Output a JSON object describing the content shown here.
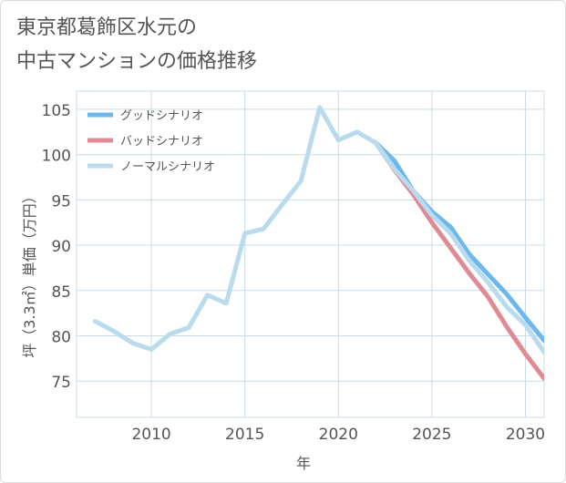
{
  "title": {
    "line1": "東京都葛飾区水元の",
    "line2": "中古マンションの価格推移"
  },
  "colors": {
    "good": "#6cb8ec",
    "bad": "#e08a93",
    "normal": "#b9dbed",
    "grid": "#c9dce8",
    "axis_text": "#555555"
  },
  "chart_data": {
    "type": "line",
    "title": "東京都葛飾区水元の中古マンションの価格推移",
    "xlabel": "年",
    "ylabel": "坪（3.3㎡）単価（万円）",
    "xlim": [
      2006,
      2031
    ],
    "ylim": [
      71,
      107
    ],
    "x_ticks": [
      2010,
      2015,
      2020,
      2025,
      2030
    ],
    "y_ticks": [
      75,
      80,
      85,
      90,
      95,
      100,
      105
    ],
    "grid": true,
    "legend_position": "top-left",
    "series": [
      {
        "name": "グッドシナリオ",
        "color": "#6cb8ec",
        "x": [
          2022,
          2023,
          2024,
          2025,
          2026,
          2027,
          2028,
          2029,
          2030,
          2031
        ],
        "y": [
          101.3,
          99.3,
          96.0,
          93.7,
          92.0,
          89.0,
          86.8,
          84.6,
          82.0,
          79.5
        ]
      },
      {
        "name": "バッドシナリオ",
        "color": "#e08a93",
        "x": [
          2022,
          2023,
          2024,
          2025,
          2026,
          2027,
          2028,
          2029,
          2030,
          2031
        ],
        "y": [
          101.3,
          98.3,
          95.6,
          92.5,
          89.7,
          86.9,
          84.3,
          81.0,
          78.0,
          75.3
        ]
      },
      {
        "name": "ノーマルシナリオ",
        "color": "#b9dbed",
        "x": [
          2007,
          2008,
          2009,
          2010,
          2011,
          2012,
          2013,
          2014,
          2015,
          2016,
          2017,
          2018,
          2019,
          2020,
          2021,
          2022,
          2023,
          2024,
          2025,
          2026,
          2027,
          2028,
          2029,
          2030,
          2031
        ],
        "y": [
          81.6,
          80.5,
          79.2,
          78.5,
          80.2,
          80.9,
          84.5,
          83.6,
          91.3,
          91.8,
          94.5,
          97.1,
          105.2,
          101.6,
          102.5,
          101.3,
          98.4,
          96.0,
          93.3,
          91.3,
          88.3,
          85.9,
          83.2,
          81.2,
          78.2
        ]
      }
    ]
  }
}
